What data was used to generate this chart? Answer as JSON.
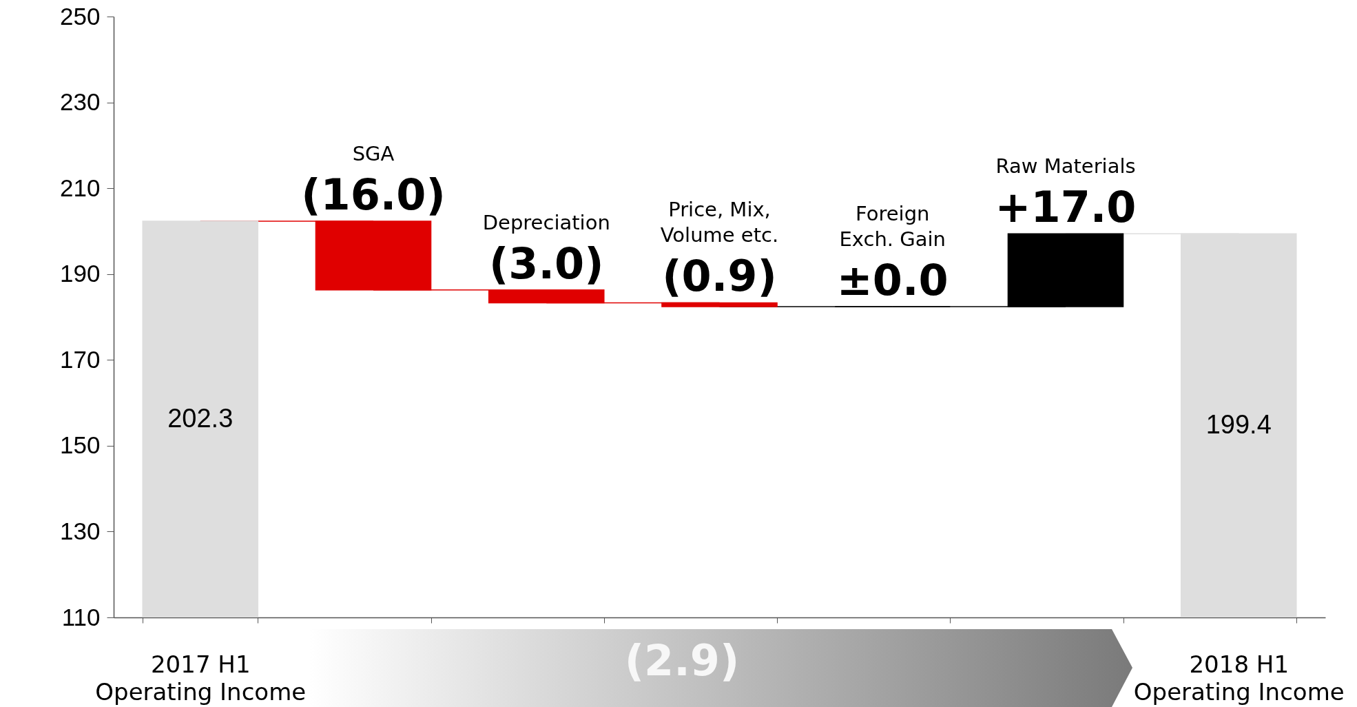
{
  "chart_data": {
    "type": "bar",
    "categories": [
      "2017 H1\nOperating Income",
      "SGA",
      "Depreciation",
      "Price, Mix,\nVolume etc.",
      "Foreign\nExch. Gain",
      "Raw Materials",
      "2018 H1\nOperating Income"
    ],
    "values": [
      202.3,
      -16.0,
      -3.0,
      -0.9,
      0.0,
      17.0,
      199.4
    ],
    "base": [
      null,
      202.3,
      186.3,
      183.3,
      182.4,
      182.4,
      null
    ],
    "colors": [
      "#dedede",
      "#e00000",
      "#e00000",
      "#e00000",
      "#000000",
      "#000000",
      "#dedede"
    ],
    "value_labels": [
      "202.3",
      "(16.0)",
      "(3.0)",
      "(0.9)",
      "±0.0",
      "+17.0",
      "199.4"
    ],
    "ylim": [
      110,
      250
    ],
    "yticks": [
      110,
      130,
      150,
      170,
      190,
      210,
      230,
      250
    ],
    "annotations": [
      "(2.9)"
    ]
  }
}
